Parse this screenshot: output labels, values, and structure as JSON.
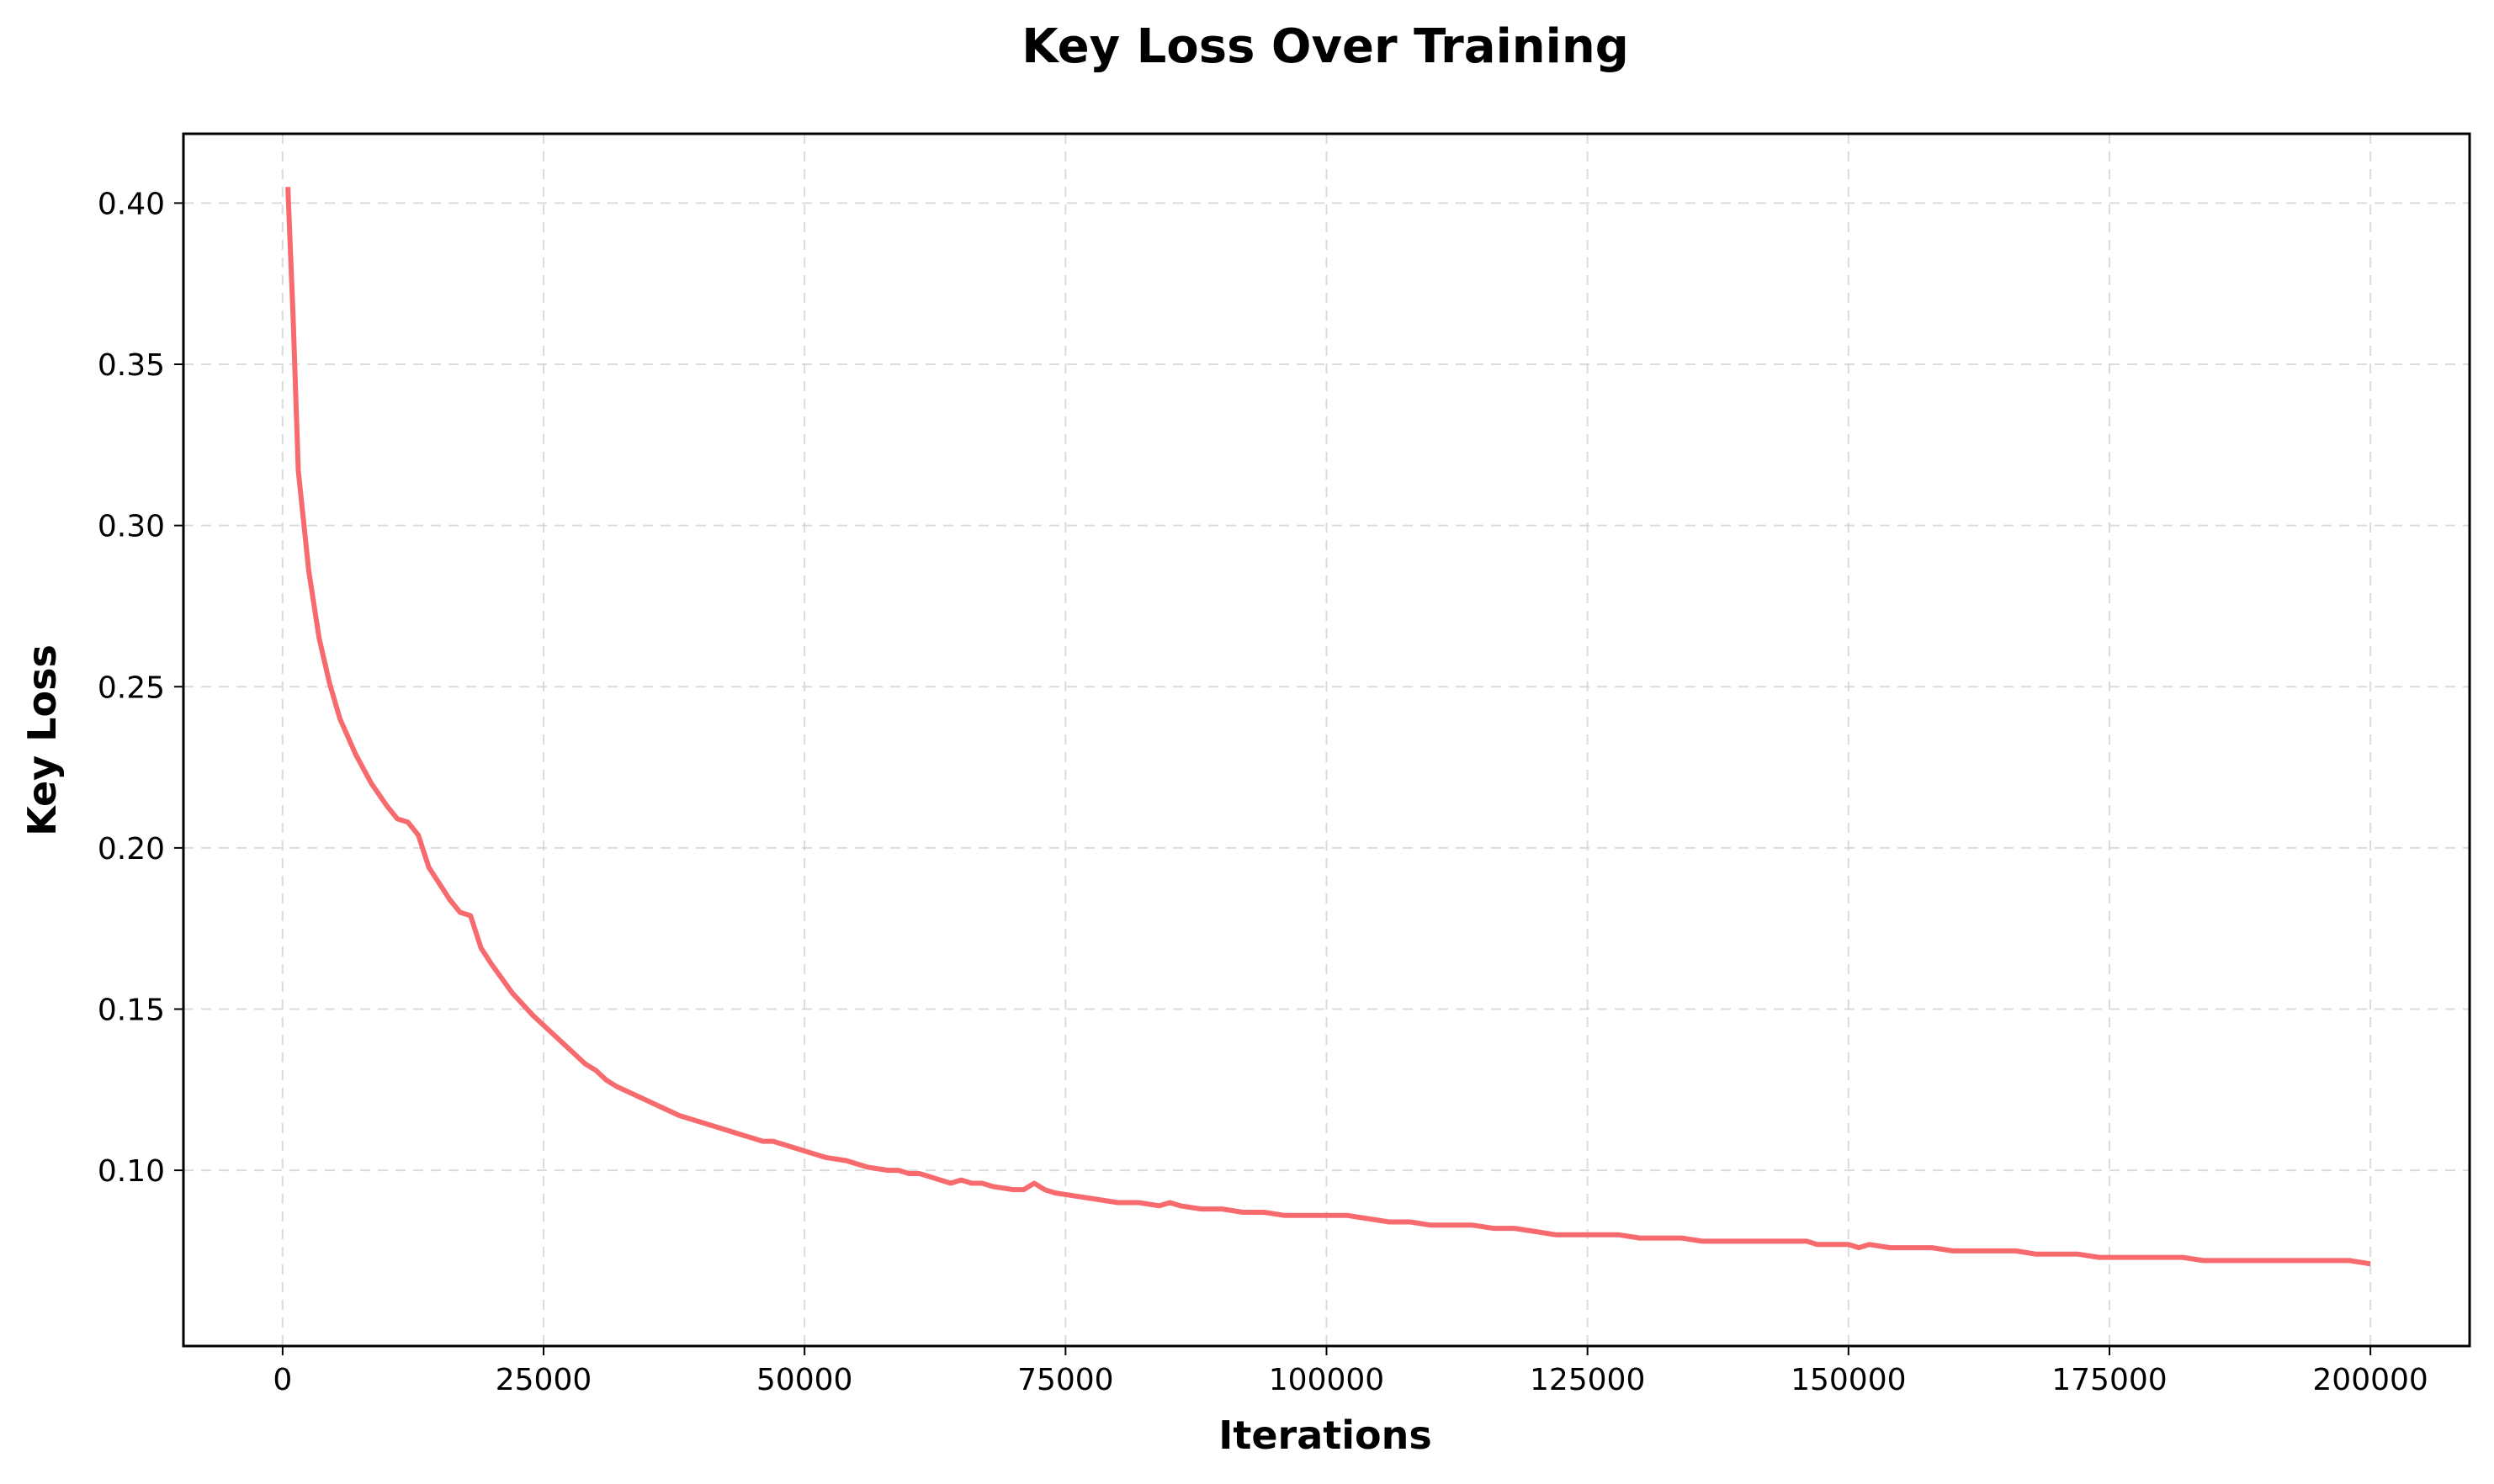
{
  "chart_data": {
    "type": "line",
    "title": "Key Loss Over Training",
    "xlabel": "Iterations",
    "ylabel": "Key Loss",
    "xlim": [
      -9500,
      209500
    ],
    "ylim": [
      0.0455,
      0.4215
    ],
    "xticks": [
      0,
      25000,
      50000,
      75000,
      100000,
      125000,
      150000,
      175000,
      200000
    ],
    "xtick_labels": [
      "0",
      "25000",
      "50000",
      "75000",
      "100000",
      "125000",
      "150000",
      "175000",
      "200000"
    ],
    "yticks": [
      0.1,
      0.15,
      0.2,
      0.25,
      0.3,
      0.35,
      0.4
    ],
    "ytick_labels": [
      "0.10",
      "0.15",
      "0.20",
      "0.25",
      "0.30",
      "0.35",
      "0.40"
    ],
    "grid": true,
    "color": "#f76b6e",
    "series": [
      {
        "x": [
          500,
          1000,
          1500,
          2500,
          3500,
          4500,
          5500,
          7000,
          8500,
          10000,
          11000,
          12000,
          13000,
          14000,
          15000,
          16000,
          17000,
          18000,
          19000,
          20000,
          22000,
          24000,
          26000,
          27000,
          28000,
          29000,
          30000,
          31000,
          32000,
          34000,
          36000,
          38000,
          40000,
          42000,
          44000,
          45000,
          46000,
          47000,
          48000,
          50000,
          52000,
          54000,
          56000,
          58000,
          59000,
          60000,
          61000,
          62000,
          64000,
          65000,
          66000,
          67000,
          68000,
          70000,
          71000,
          72000,
          73000,
          74000,
          76000,
          78000,
          80000,
          82000,
          84000,
          85000,
          86000,
          88000,
          90000,
          92000,
          94000,
          96000,
          98000,
          100000,
          102000,
          104000,
          106000,
          108000,
          110000,
          112000,
          114000,
          116000,
          118000,
          120000,
          122000,
          124000,
          126000,
          128000,
          130000,
          132000,
          134000,
          136000,
          138000,
          140000,
          142000,
          144000,
          146000,
          147000,
          148000,
          150000,
          151000,
          152000,
          154000,
          156000,
          158000,
          160000,
          162000,
          164000,
          166000,
          168000,
          170000,
          172000,
          174000,
          176000,
          178000,
          180000,
          182000,
          184000,
          186000,
          188000,
          190000,
          192000,
          194000,
          196000,
          198000,
          200000
        ],
        "y": [
          0.405,
          0.365,
          0.317,
          0.286,
          0.265,
          0.251,
          0.24,
          0.229,
          0.22,
          0.213,
          0.209,
          0.208,
          0.204,
          0.194,
          0.189,
          0.184,
          0.18,
          0.179,
          0.169,
          0.164,
          0.155,
          0.148,
          0.142,
          0.139,
          0.136,
          0.133,
          0.131,
          0.128,
          0.126,
          0.123,
          0.12,
          0.117,
          0.115,
          0.113,
          0.111,
          0.11,
          0.109,
          0.109,
          0.108,
          0.106,
          0.104,
          0.103,
          0.101,
          0.1,
          0.1,
          0.099,
          0.099,
          0.098,
          0.096,
          0.097,
          0.096,
          0.096,
          0.095,
          0.094,
          0.094,
          0.096,
          0.094,
          0.093,
          0.092,
          0.091,
          0.09,
          0.09,
          0.089,
          0.09,
          0.089,
          0.088,
          0.088,
          0.087,
          0.087,
          0.086,
          0.086,
          0.086,
          0.086,
          0.085,
          0.084,
          0.084,
          0.083,
          0.083,
          0.083,
          0.082,
          0.082,
          0.081,
          0.08,
          0.08,
          0.08,
          0.08,
          0.079,
          0.079,
          0.079,
          0.078,
          0.078,
          0.078,
          0.078,
          0.078,
          0.078,
          0.077,
          0.077,
          0.077,
          0.076,
          0.077,
          0.076,
          0.076,
          0.076,
          0.075,
          0.075,
          0.075,
          0.075,
          0.074,
          0.074,
          0.074,
          0.073,
          0.073,
          0.073,
          0.073,
          0.073,
          0.072,
          0.072,
          0.072,
          0.072,
          0.072,
          0.072,
          0.072,
          0.072,
          0.071
        ]
      }
    ]
  }
}
